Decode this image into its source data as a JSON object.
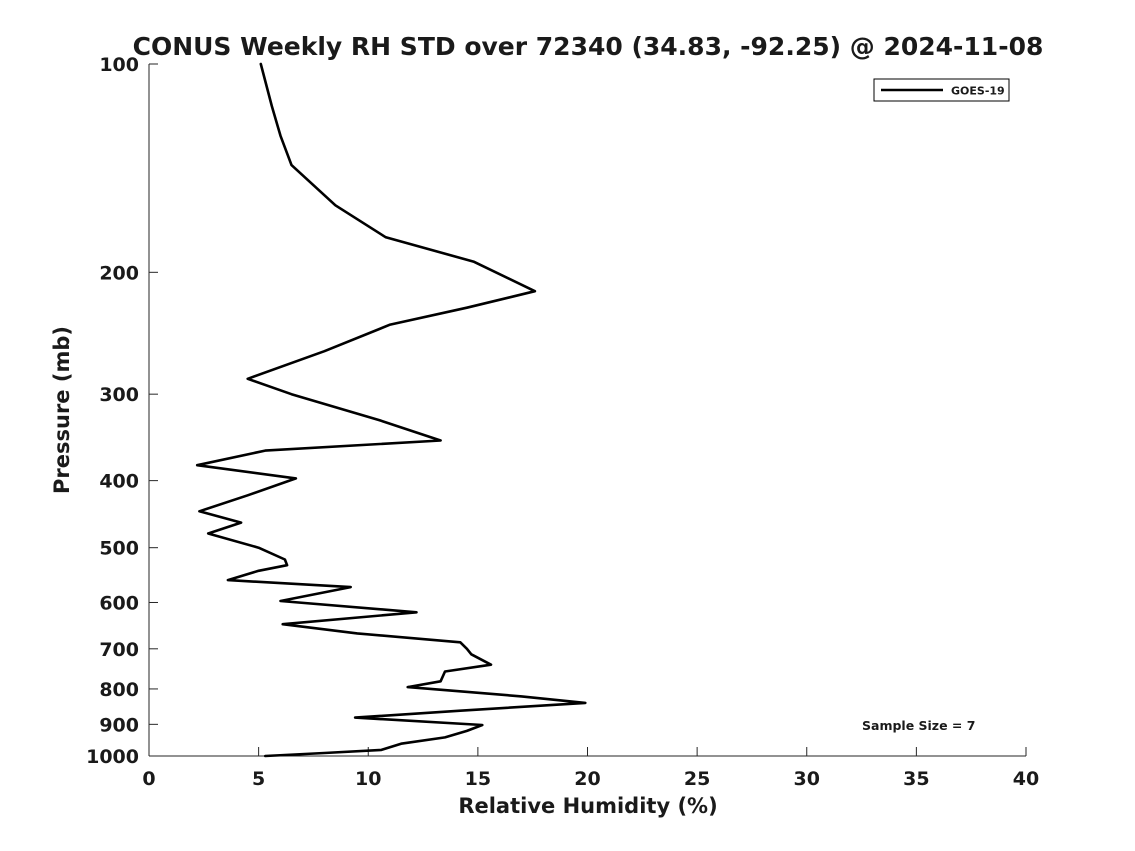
{
  "chart_data": {
    "type": "line",
    "title": "CONUS Weekly RH STD over 72340 (34.83, -92.25) @ 2024-11-08",
    "xlabel": "Relative Humidity (%)",
    "ylabel": "Pressure (mb)",
    "xlim": [
      0,
      40
    ],
    "ylim": [
      1000,
      100
    ],
    "y_scale": "log",
    "y_direction": "reversed",
    "xticks": [
      "0",
      "5",
      "10",
      "15",
      "20",
      "25",
      "30",
      "35",
      "40"
    ],
    "yticks": [
      "100",
      "200",
      "300",
      "400",
      "500",
      "600",
      "700",
      "800",
      "900",
      "1000"
    ],
    "grid": false,
    "legend": {
      "position": "top-right",
      "entries": [
        "GOES-19"
      ]
    },
    "annotation": "Sample Size = 7",
    "series": [
      {
        "name": "GOES-19",
        "color": "#000000",
        "x": [
          5.1,
          5.6,
          6.0,
          6.5,
          8.5,
          10.8,
          14.8,
          17.6,
          14.5,
          11.0,
          8.0,
          4.5,
          6.5,
          10.5,
          13.3,
          5.3,
          2.2,
          6.7,
          4.5,
          2.3,
          4.2,
          2.7,
          5.0,
          6.2,
          6.3,
          5.0,
          3.6,
          9.2,
          6.0,
          12.2,
          6.1,
          9.5,
          14.2,
          14.5,
          14.7,
          15.6,
          13.5,
          13.3,
          11.8,
          17.0,
          19.9,
          14.2,
          9.4,
          15.2,
          14.5,
          13.5,
          11.5,
          10.6,
          8.0,
          5.3
        ],
        "y": [
          100,
          115,
          127,
          140,
          160,
          178,
          193,
          213,
          225,
          238,
          260,
          285,
          300,
          327,
          350,
          362,
          380,
          397,
          420,
          443,
          460,
          477,
          500,
          520,
          530,
          540,
          557,
          570,
          597,
          620,
          645,
          665,
          685,
          700,
          713,
          738,
          755,
          780,
          795,
          820,
          838,
          860,
          880,
          902,
          920,
          940,
          960,
          980,
          990,
          1000
        ]
      }
    ]
  }
}
